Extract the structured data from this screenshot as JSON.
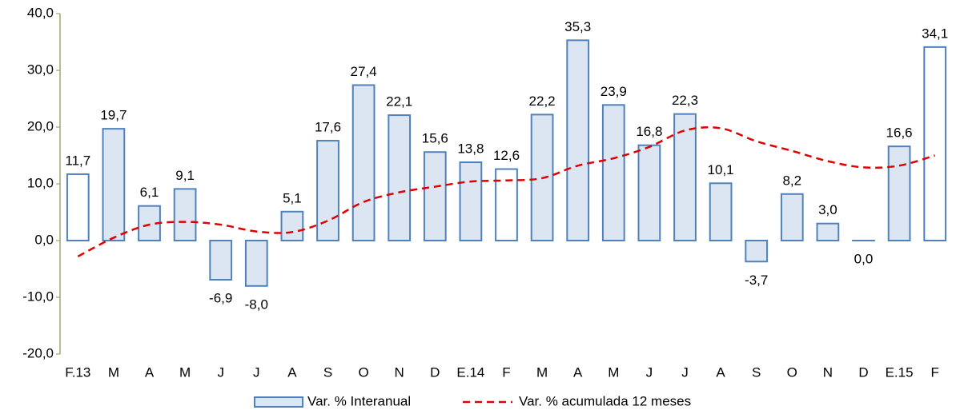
{
  "chart_data": {
    "type": "bar",
    "categories": [
      "F.13",
      "M",
      "A",
      "M",
      "J",
      "J",
      "A",
      "S",
      "O",
      "N",
      "D",
      "E.14",
      "F",
      "M",
      "A",
      "M",
      "J",
      "J",
      "A",
      "S",
      "O",
      "N",
      "D",
      "E.15",
      "F"
    ],
    "series": [
      {
        "name": "Var. % Interanual",
        "type": "bar",
        "color": "#4f81bd",
        "fill_colors": [
          "#ffffff",
          "#dce6f2",
          "#dce6f2",
          "#dce6f2",
          "#dce6f2",
          "#dce6f2",
          "#dce6f2",
          "#dce6f2",
          "#dce6f2",
          "#dce6f2",
          "#dce6f2",
          "#dce6f2",
          "#ffffff",
          "#dce6f2",
          "#dce6f2",
          "#dce6f2",
          "#dce6f2",
          "#dce6f2",
          "#dce6f2",
          "#dce6f2",
          "#dce6f2",
          "#dce6f2",
          "#dce6f2",
          "#dce6f2",
          "#ffffff"
        ],
        "values": [
          11.7,
          19.7,
          6.1,
          9.1,
          -6.9,
          -8.0,
          5.1,
          17.6,
          27.4,
          22.1,
          15.6,
          13.8,
          12.6,
          22.2,
          35.3,
          23.9,
          16.8,
          22.3,
          10.1,
          -3.7,
          8.2,
          3.0,
          0.0,
          16.6,
          34.1
        ],
        "value_labels": [
          "11,7",
          "19,7",
          "6,1",
          "9,1",
          "-6,9",
          "-8,0",
          "5,1",
          "17,6",
          "27,4",
          "22,1",
          "15,6",
          "13,8",
          "12,6",
          "22,2",
          "35,3",
          "23,9",
          "16,8",
          "22,3",
          "10,1",
          "-3,7",
          "8,2",
          "3,0",
          "0,0",
          "16,6",
          "34,1"
        ]
      },
      {
        "name": "Var. % acumulada 12 meses",
        "type": "line",
        "color": "#e00000",
        "dashed": true,
        "values": [
          -2.8,
          0.5,
          2.8,
          3.3,
          2.8,
          1.6,
          1.5,
          3.5,
          6.8,
          8.5,
          9.5,
          10.4,
          10.6,
          11.0,
          13.2,
          14.5,
          16.5,
          19.4,
          19.8,
          17.5,
          15.8,
          14.0,
          12.9,
          13.2,
          15.0
        ]
      }
    ],
    "ylim": [
      -20,
      40
    ],
    "yticks": [
      {
        "value": -20,
        "label": "-20,0"
      },
      {
        "value": -10,
        "label": "-10,0"
      },
      {
        "value": 0,
        "label": "0,0"
      },
      {
        "value": 10,
        "label": "10,0"
      },
      {
        "value": 20,
        "label": "20,0"
      },
      {
        "value": 30,
        "label": "30,0"
      },
      {
        "value": 40,
        "label": "40,0"
      }
    ],
    "legend": "bottom"
  }
}
